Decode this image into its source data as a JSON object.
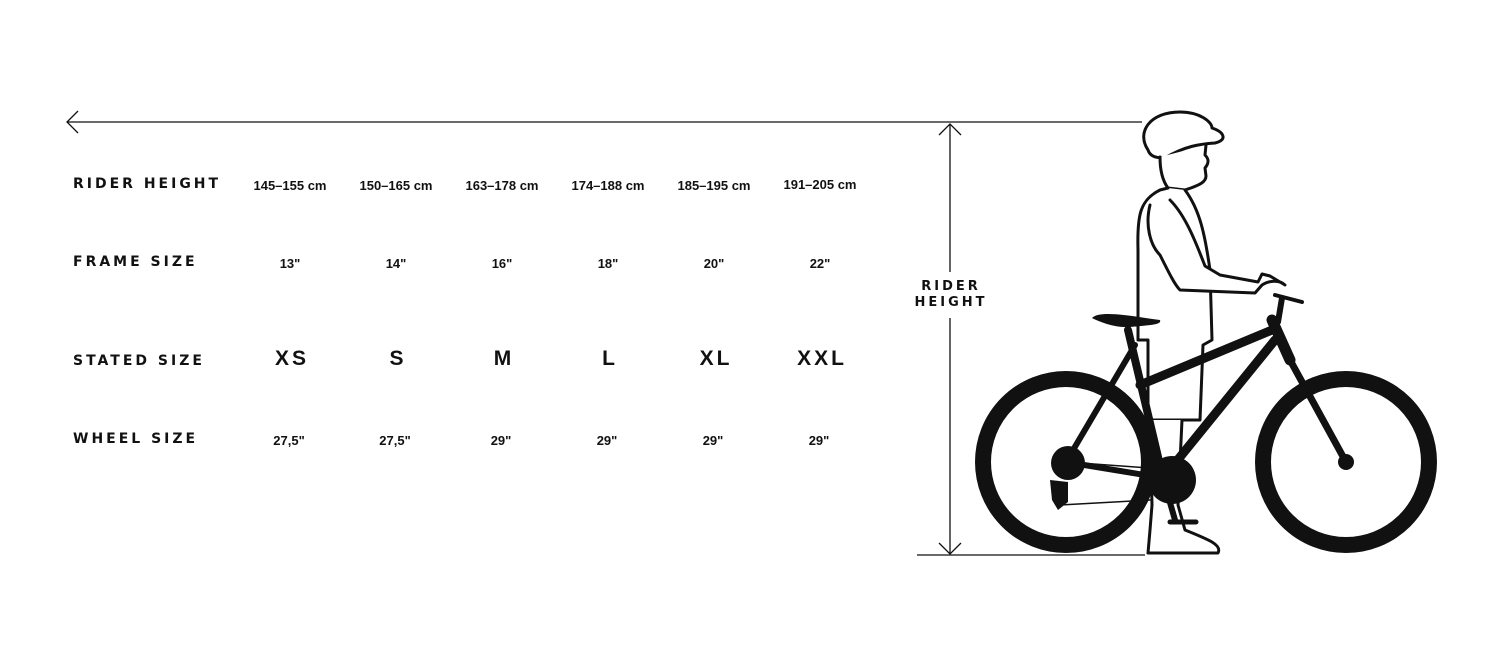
{
  "rows": [
    {
      "label": "RIDER HEIGHT",
      "values": [
        "145–155 cm",
        "150–165 cm",
        "163–178 cm",
        "174–188 cm",
        "185–195 cm",
        "191–205 cm"
      ]
    },
    {
      "label": "FRAME SIZE",
      "values": [
        "13\"",
        "14\"",
        "16\"",
        "18\"",
        "20\"",
        "22\""
      ]
    },
    {
      "label": "STATED SIZE",
      "values": [
        "XS",
        "S",
        "M",
        "L",
        "XL",
        "XXL"
      ]
    },
    {
      "label": "WHEEL SIZE",
      "values": [
        "27,5\"",
        "27,5\"",
        "29\"",
        "29\"",
        "29\"",
        "29\""
      ]
    }
  ],
  "figure": {
    "rider_height_label_line1": "RIDER",
    "rider_height_label_line2": "HEIGHT"
  },
  "colors": {
    "ink": "#111111",
    "background": "#ffffff"
  }
}
